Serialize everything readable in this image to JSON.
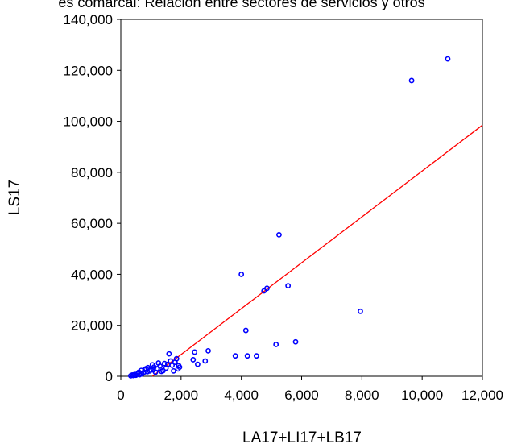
{
  "chart_data": {
    "type": "scatter",
    "title": "es comarcal: Relación entre sectores de servicios y otros",
    "xlabel": "LA17+LI17+LB17",
    "ylabel": "LS17",
    "xlim": [
      0,
      12000
    ],
    "ylim": [
      0,
      140000
    ],
    "x_ticks": [
      "0",
      "2,000",
      "4,000",
      "6,000",
      "8,000",
      "10,000",
      "12,000"
    ],
    "y_ticks": [
      "0",
      "20,000",
      "40,000",
      "60,000",
      "80,000",
      "100,000",
      "120,000",
      "140,000"
    ],
    "grid": false,
    "legend": "none",
    "series": [
      {
        "marker": "open-circle",
        "color": "#0000ff",
        "points": [
          [
            330,
            200
          ],
          [
            380,
            500
          ],
          [
            420,
            300
          ],
          [
            460,
            700
          ],
          [
            500,
            400
          ],
          [
            560,
            1000
          ],
          [
            600,
            1600
          ],
          [
            620,
            600
          ],
          [
            680,
            2300
          ],
          [
            700,
            900
          ],
          [
            760,
            1500
          ],
          [
            800,
            2600
          ],
          [
            840,
            3000
          ],
          [
            880,
            1800
          ],
          [
            900,
            3400
          ],
          [
            960,
            2100
          ],
          [
            1000,
            2700
          ],
          [
            1050,
            4500
          ],
          [
            1080,
            2500
          ],
          [
            1100,
            3600
          ],
          [
            1150,
            1600
          ],
          [
            1200,
            3000
          ],
          [
            1250,
            5200
          ],
          [
            1300,
            4000
          ],
          [
            1350,
            1900
          ],
          [
            1400,
            2200
          ],
          [
            1450,
            5000
          ],
          [
            1500,
            3200
          ],
          [
            1560,
            4700
          ],
          [
            1600,
            8800
          ],
          [
            1650,
            6000
          ],
          [
            1700,
            4300
          ],
          [
            1750,
            2100
          ],
          [
            1800,
            5500
          ],
          [
            1850,
            6900
          ],
          [
            1900,
            2900
          ],
          [
            1920,
            4200
          ],
          [
            1950,
            3600
          ],
          [
            2400,
            6500
          ],
          [
            2450,
            9500
          ],
          [
            2550,
            4700
          ],
          [
            2800,
            6000
          ],
          [
            2900,
            10000
          ],
          [
            3800,
            8000
          ],
          [
            4000,
            40000
          ],
          [
            4150,
            18000
          ],
          [
            4200,
            8000
          ],
          [
            4500,
            8000
          ],
          [
            4750,
            33500
          ],
          [
            4850,
            34500
          ],
          [
            5150,
            12500
          ],
          [
            5250,
            55500
          ],
          [
            5550,
            35500
          ],
          [
            5800,
            13500
          ],
          [
            7950,
            25500
          ],
          [
            9650,
            116000
          ],
          [
            10850,
            124500
          ]
        ]
      }
    ],
    "fit_line": {
      "color": "#ff0000",
      "x": [
        1050,
        12000
      ],
      "y": [
        0,
        98500
      ]
    }
  }
}
